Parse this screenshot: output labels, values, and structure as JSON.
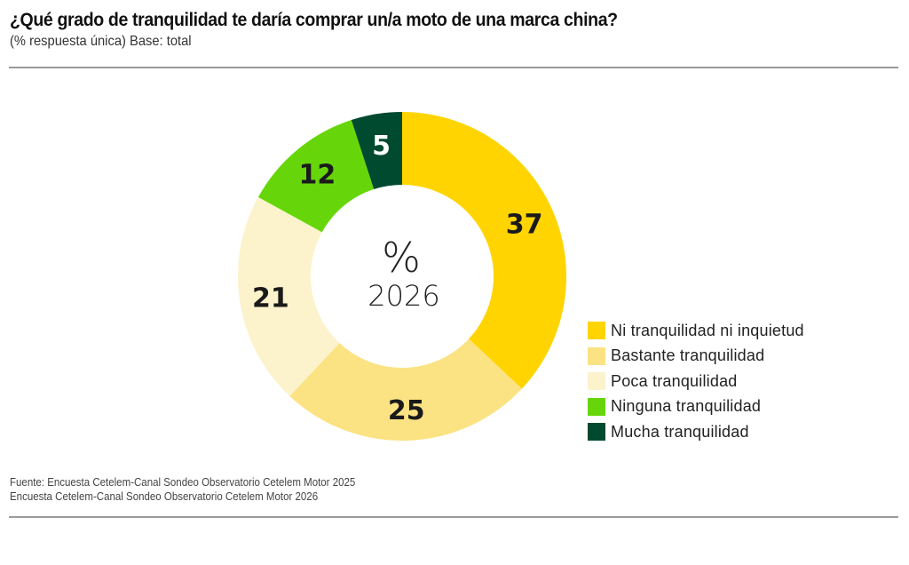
{
  "header": {
    "title": "¿Qué grado de tranquilidad te daría comprar un/a  moto de una marca china?",
    "subtitle": "(% respuesta única) Base: total"
  },
  "chart_data": {
    "type": "pie",
    "variant": "donut",
    "title": "¿Qué grado de tranquilidad te daría comprar un/a  moto de una marca china?",
    "subtitle": "(% respuesta única) Base: total",
    "center_label": {
      "symbol": "%",
      "year": "2026"
    },
    "start": "top, clockwise",
    "slices": [
      {
        "label": "Ni tranquilidad ni inquietud",
        "value": 37,
        "color": "#FFD400",
        "text_color": "#1a1a1a"
      },
      {
        "label": "Bastante tranquilidad",
        "value": 25,
        "color": "#FBE383",
        "text_color": "#1a1a1a"
      },
      {
        "label": "Poca tranquilidad",
        "value": 21,
        "color": "#FCF3CC",
        "text_color": "#1a1a1a"
      },
      {
        "label": "Ninguna tranquilidad",
        "value": 12,
        "color": "#66D60A",
        "text_color": "#1a1a1a"
      },
      {
        "label": "Mucha tranquilidad",
        "value": 5,
        "color": "#004A2F",
        "text_color": "#ffffff"
      }
    ],
    "legend_position": "right"
  },
  "legend": {
    "items": [
      {
        "label": "Ni tranquilidad ni inquietud",
        "color": "#FFD400"
      },
      {
        "label": "Bastante tranquilidad",
        "color": "#FBE383"
      },
      {
        "label": "Poca tranquilidad",
        "color": "#FCF3CC"
      },
      {
        "label": "Ninguna tranquilidad",
        "color": "#66D60A"
      },
      {
        "label": "Mucha tranquilidad",
        "color": "#004A2F"
      }
    ]
  },
  "footer": {
    "source_line1": "Fuente: Encuesta Cetelem-Canal Sondeo Observatorio Cetelem Motor 2025",
    "source_line2": "Encuesta Cetelem-Canal Sondeo Observatorio Cetelem Motor 2026"
  }
}
